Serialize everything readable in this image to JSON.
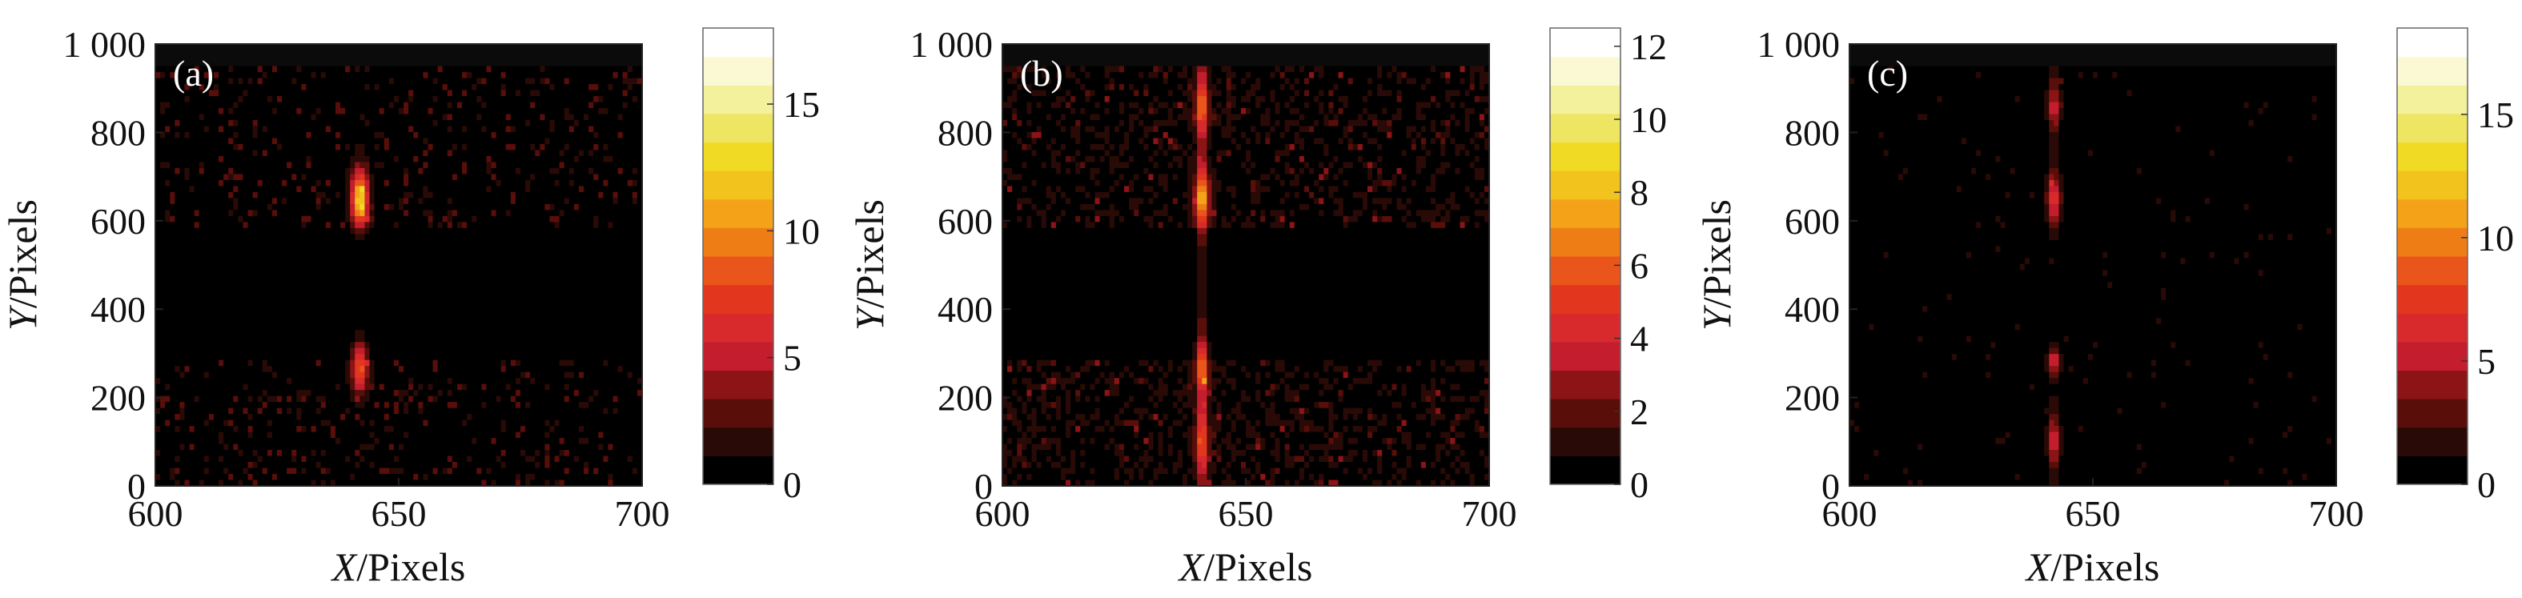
{
  "chart_data": [
    {
      "type": "heatmap",
      "panel_label": "(a)",
      "xlabel_italic": "X",
      "xlabel_rest": "/Pixels",
      "ylabel_italic": "Y",
      "ylabel_rest": "/Pixels",
      "xlim": [
        600,
        700
      ],
      "ylim": [
        0,
        950
      ],
      "x_ticks": [
        600,
        650,
        700
      ],
      "x_tick_labels": [
        "600",
        "650",
        "700"
      ],
      "y_ticks": [
        0,
        200,
        400,
        600,
        800,
        1000
      ],
      "y_tick_labels": [
        "0",
        "200",
        "400",
        "600",
        "800",
        "1 000"
      ],
      "colorbar": {
        "min": 0,
        "max": 18,
        "ticks": [
          0,
          5,
          10,
          15
        ],
        "tick_labels": [
          "0",
          "5",
          "10",
          "15"
        ]
      },
      "background_level": 0.8,
      "dark_band": [
        290,
        580
      ],
      "noise_density": 0.16,
      "noise_max": 2.5,
      "hotspots": [
        {
          "x": 642,
          "y": 650,
          "peak": 12,
          "sx": 1.2,
          "sy": 45
        },
        {
          "x": 642,
          "y": 270,
          "peak": 8,
          "sx": 1.2,
          "sy": 40
        }
      ],
      "streak": null
    },
    {
      "type": "heatmap",
      "panel_label": "(b)",
      "xlabel_italic": "X",
      "xlabel_rest": "/Pixels",
      "ylabel_italic": "Y",
      "ylabel_rest": "/Pixels",
      "xlim": [
        600,
        700
      ],
      "ylim": [
        0,
        950
      ],
      "x_ticks": [
        600,
        650,
        700
      ],
      "x_tick_labels": [
        "600",
        "650",
        "700"
      ],
      "y_ticks": [
        0,
        200,
        400,
        600,
        800,
        1000
      ],
      "y_tick_labels": [
        "0",
        "200",
        "400",
        "600",
        "800",
        "1 000"
      ],
      "colorbar": {
        "min": 0,
        "max": 12.5,
        "ticks": [
          0,
          2,
          4,
          6,
          8,
          10,
          12
        ],
        "tick_labels": [
          "0",
          "2",
          "4",
          "6",
          "8",
          "10",
          "12"
        ]
      },
      "background_level": 0.9,
      "dark_band": [
        290,
        580
      ],
      "noise_density": 0.08,
      "noise_max": 2,
      "hotspots": [
        {
          "x": 641,
          "y": 860,
          "peak": 4.5,
          "sx": 1.0,
          "sy": 45
        },
        {
          "x": 641,
          "y": 650,
          "peak": 6,
          "sx": 1.1,
          "sy": 45
        },
        {
          "x": 641,
          "y": 270,
          "peak": 4.5,
          "sx": 1.0,
          "sy": 45
        },
        {
          "x": 641,
          "y": 100,
          "peak": 3.8,
          "sx": 1.0,
          "sy": 50
        }
      ],
      "streak": {
        "x": 641,
        "level": 1.3
      }
    },
    {
      "type": "heatmap",
      "panel_label": "(c)",
      "xlabel_italic": "X",
      "xlabel_rest": "/Pixels",
      "ylabel_italic": "Y",
      "ylabel_rest": "/Pixels",
      "xlim": [
        600,
        700
      ],
      "ylim": [
        0,
        950
      ],
      "x_ticks": [
        600,
        650,
        700
      ],
      "x_tick_labels": [
        "600",
        "650",
        "700"
      ],
      "y_ticks": [
        0,
        200,
        400,
        600,
        800,
        1000
      ],
      "y_tick_labels": [
        "0",
        "200",
        "400",
        "600",
        "800",
        "1 000"
      ],
      "colorbar": {
        "min": 0,
        "max": 18.5,
        "ticks": [
          0,
          5,
          10,
          15
        ],
        "tick_labels": [
          "0",
          "5",
          "10",
          "15"
        ]
      },
      "background_level": 0.15,
      "dark_band": null,
      "noise_density": 0.035,
      "noise_max": 2,
      "hotspots": [
        {
          "x": 642,
          "y": 860,
          "peak": 4.5,
          "sx": 1.0,
          "sy": 40
        },
        {
          "x": 642,
          "y": 650,
          "peak": 6,
          "sx": 1.1,
          "sy": 40
        },
        {
          "x": 642,
          "y": 280,
          "peak": 5.5,
          "sx": 1.0,
          "sy": 20
        },
        {
          "x": 642,
          "y": 100,
          "peak": 4.5,
          "sx": 1.0,
          "sy": 45
        }
      ],
      "streak": {
        "x": 642,
        "level": 0.8
      }
    }
  ],
  "colormap": [
    "#000000",
    "#2a0a06",
    "#5a0e0a",
    "#8c1416",
    "#c41e2e",
    "#d82a2c",
    "#e2371e",
    "#e9551a",
    "#ef7d16",
    "#f4a319",
    "#f2c31c",
    "#f0da24",
    "#eee563",
    "#f4f19c",
    "#fbf9d4",
    "#ffffff"
  ]
}
